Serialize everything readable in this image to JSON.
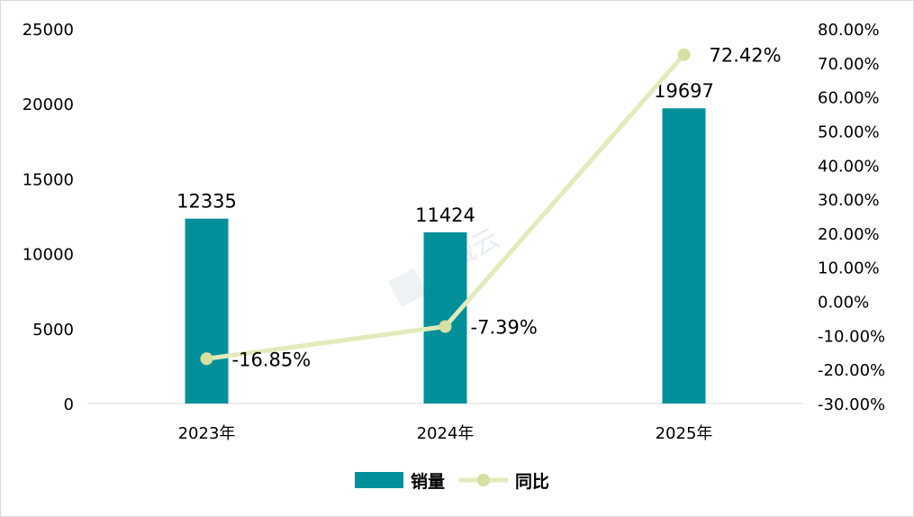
{
  "chart_data": {
    "type": "bar+line",
    "categories": [
      "2023年",
      "2024年",
      "2025年"
    ],
    "bar_series": {
      "name": "销量",
      "values": [
        12335,
        11424,
        19697
      ],
      "labels": [
        "12335",
        "11424",
        "19697"
      ],
      "color": "#00909a",
      "axis": "left"
    },
    "line_series": {
      "name": "同比",
      "values": [
        -16.85,
        -7.39,
        72.42
      ],
      "labels": [
        "-16.85%",
        "-7.39%",
        "72.42%"
      ],
      "color": "#e2ebbb",
      "marker_color": "#d6e0a2",
      "axis": "right"
    },
    "y_left": {
      "range": [
        0,
        25000
      ],
      "ticks": [
        "0",
        "5000",
        "10000",
        "15000",
        "20000",
        "25000"
      ]
    },
    "y_right": {
      "range": [
        -30,
        80
      ],
      "ticks": [
        "-30.00%",
        "-20.00%",
        "-10.00%",
        "0.00%",
        "10.00%",
        "20.00%",
        "30.00%",
        "40.00%",
        "50.00%",
        "60.00%",
        "70.00%",
        "80.00%"
      ]
    },
    "legend_position": "bottom",
    "grid": false
  },
  "watermark": "智械云"
}
